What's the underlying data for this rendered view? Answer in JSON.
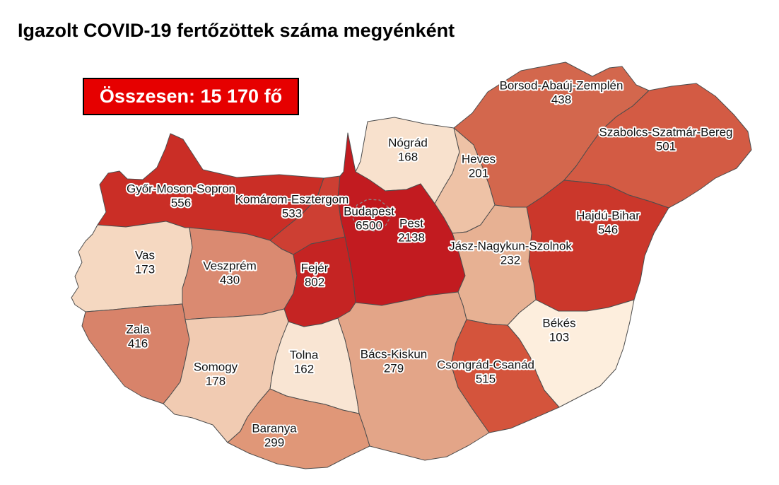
{
  "title": "Igazolt COVID-19 fertőzöttek száma megyénként",
  "total_box": {
    "text": "Összesen: 15 170 fő",
    "background": "#e60000",
    "border_color": "#000000",
    "text_color": "#ffffff"
  },
  "map": {
    "border_color": "#4d4d4d",
    "enclave_border_color": "#8a8a8a",
    "label_color": "#111111",
    "label_halo_color": "#ffffff",
    "counties": [
      {
        "id": "borsod",
        "name": "Borsod-Abaúj-Zemplén",
        "value": "438",
        "color": "#d3674d"
      },
      {
        "id": "szabolcs",
        "name": "Szabolcs-Szatmár-Bereg",
        "value": "501",
        "color": "#d35b44"
      },
      {
        "id": "nograd",
        "name": "Nógrád",
        "value": "168",
        "color": "#f8e1cd"
      },
      {
        "id": "heves",
        "name": "Heves",
        "value": "201",
        "color": "#eec2a6"
      },
      {
        "id": "gyor",
        "name": "Győr-Moson-Sopron",
        "value": "556",
        "color": "#ca2e26"
      },
      {
        "id": "komarom",
        "name": "Komárom-Esztergom",
        "value": "533",
        "color": "#cd3f33"
      },
      {
        "id": "pest",
        "name": "Pest",
        "value": "2138",
        "color": "#c21b20"
      },
      {
        "id": "budapest",
        "name": "Budapest",
        "value": "6500",
        "color": "#c0161c"
      },
      {
        "id": "hajdu",
        "name": "Hajdú-Bihar",
        "value": "546",
        "color": "#cb372b"
      },
      {
        "id": "jasz",
        "name": "Jász-Nagykun-Szolnok",
        "value": "232",
        "color": "#e7b193"
      },
      {
        "id": "vas",
        "name": "Vas",
        "value": "173",
        "color": "#f5d8c1"
      },
      {
        "id": "veszprem",
        "name": "Veszprém",
        "value": "430",
        "color": "#da8a71"
      },
      {
        "id": "fejer",
        "name": "Fejér",
        "value": "802",
        "color": "#c52423"
      },
      {
        "id": "zala",
        "name": "Zala",
        "value": "416",
        "color": "#d8836a"
      },
      {
        "id": "somogy",
        "name": "Somogy",
        "value": "178",
        "color": "#f1cbb2"
      },
      {
        "id": "tolna",
        "name": "Tolna",
        "value": "162",
        "color": "#f9e5d3"
      },
      {
        "id": "bacs",
        "name": "Bács-Kiskun",
        "value": "279",
        "color": "#e3a588"
      },
      {
        "id": "bekes",
        "name": "Békés",
        "value": "103",
        "color": "#fdeedd"
      },
      {
        "id": "csongrad",
        "name": "Csongrád-Csanád",
        "value": "515",
        "color": "#d4543c"
      },
      {
        "id": "baranya",
        "name": "Baranya",
        "value": "299",
        "color": "#e09778"
      }
    ]
  },
  "chart_data": {
    "type": "choropleth",
    "title": "Igazolt COVID-19 fertőzöttek száma megyénként",
    "total_label": "Összesen: 15 170 fő",
    "total": 15170,
    "categories": [
      "Borsod-Abaúj-Zemplén",
      "Szabolcs-Szatmár-Bereg",
      "Nógrád",
      "Heves",
      "Győr-Moson-Sopron",
      "Komárom-Esztergom",
      "Pest",
      "Budapest",
      "Hajdú-Bihar",
      "Jász-Nagykun-Szolnok",
      "Vas",
      "Veszprém",
      "Fejér",
      "Zala",
      "Somogy",
      "Tolna",
      "Bács-Kiskun",
      "Békés",
      "Csongrád-Csanád",
      "Baranya"
    ],
    "values": [
      438,
      501,
      168,
      201,
      556,
      533,
      2138,
      6500,
      546,
      232,
      173,
      430,
      802,
      416,
      178,
      162,
      279,
      103,
      515,
      299
    ],
    "legend_position": "none",
    "color_scale": "light cream (low) to dark red (high)"
  }
}
